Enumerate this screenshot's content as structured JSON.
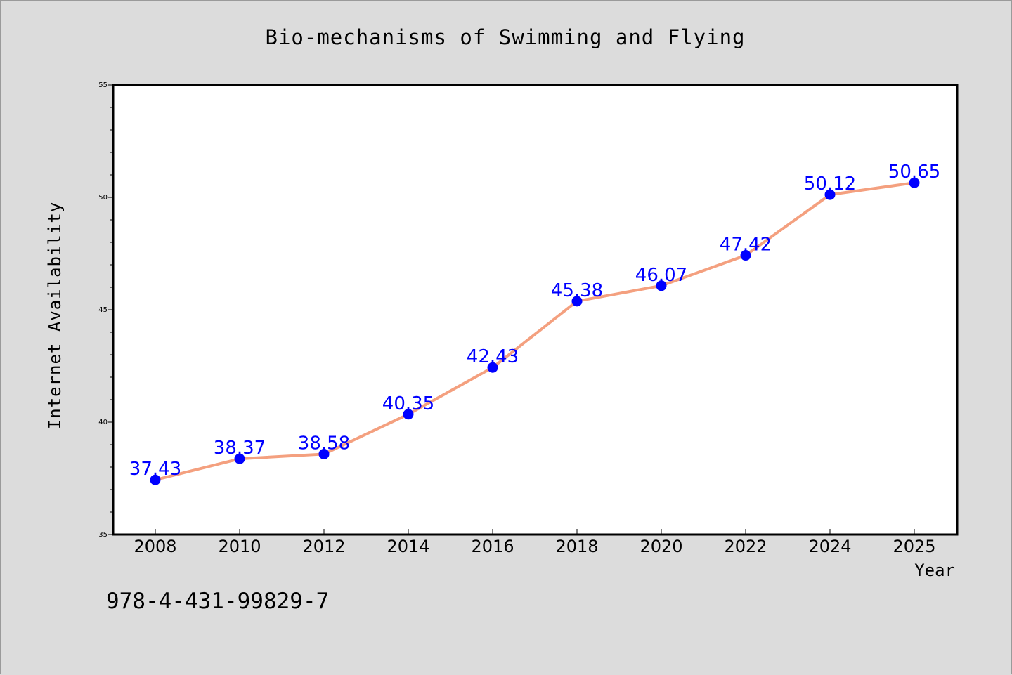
{
  "chart_data": {
    "type": "line",
    "title": "Bio-mechanisms of Swimming and Flying",
    "xlabel": "Year",
    "ylabel": "Internet Availability",
    "categories": [
      "2008",
      "2010",
      "2012",
      "2014",
      "2016",
      "2018",
      "2020",
      "2022",
      "2024",
      "2025"
    ],
    "series": [
      {
        "values": [
          37.43,
          38.37,
          38.58,
          40.35,
          42.43,
          45.38,
          46.07,
          47.42,
          50.12,
          50.65
        ],
        "labels": [
          "37.43",
          "38.37",
          "38.58",
          "40.35",
          "42.43",
          "45.38",
          "46.07",
          "47.42",
          "50.12",
          "50.65"
        ],
        "line_color": "#f4a07f",
        "marker_color": "#0000ff",
        "label_color": "#0000ff"
      }
    ],
    "ylim": [
      35,
      55
    ],
    "y_ticks": [
      "35",
      "40",
      "45",
      "50",
      "55"
    ],
    "y_minor_step": 1,
    "grid": false,
    "plot_background": "#ffffff",
    "figure_background": "#dcdcdc"
  },
  "footer": {
    "isbn": "978-4-431-99829-7"
  }
}
